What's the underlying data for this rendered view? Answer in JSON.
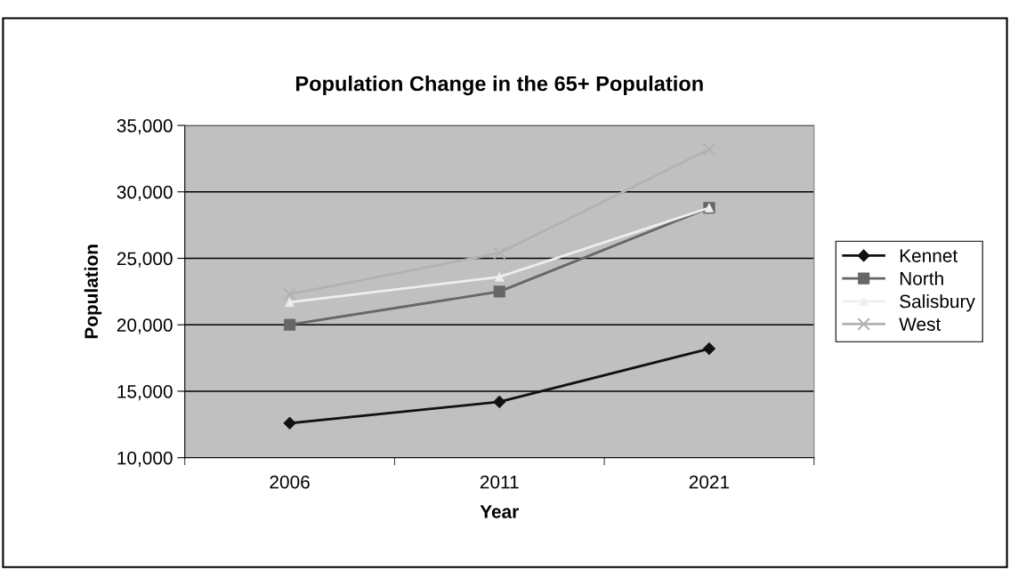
{
  "chart_data": {
    "type": "line",
    "title": "Population Change in the 65+ Population",
    "xlabel": "Year",
    "ylabel": "Population",
    "categories": [
      "2006",
      "2011",
      "2021"
    ],
    "series": [
      {
        "name": "Kennet",
        "color": "#111111",
        "marker": "diamond",
        "values": [
          12600,
          14200,
          18200
        ]
      },
      {
        "name": "North",
        "color": "#666666",
        "marker": "square",
        "values": [
          20000,
          22500,
          28800
        ]
      },
      {
        "name": "Salisbury",
        "color": "#eeeeee",
        "marker": "triangle",
        "values": [
          21700,
          23600,
          28800
        ]
      },
      {
        "name": "West",
        "color": "#b2b2b2",
        "marker": "cross",
        "values": [
          22300,
          25400,
          33200
        ]
      }
    ],
    "ylim": [
      10000,
      35000
    ],
    "yticks": [
      {
        "value": 10000,
        "label": "10,000"
      },
      {
        "value": 15000,
        "label": "15,000"
      },
      {
        "value": 20000,
        "label": "20,000"
      },
      {
        "value": 25000,
        "label": "25,000"
      },
      {
        "value": 30000,
        "label": "30,000"
      },
      {
        "value": 35000,
        "label": "35,000"
      }
    ],
    "grid": "y",
    "legend": "right",
    "line_style": "solid"
  }
}
